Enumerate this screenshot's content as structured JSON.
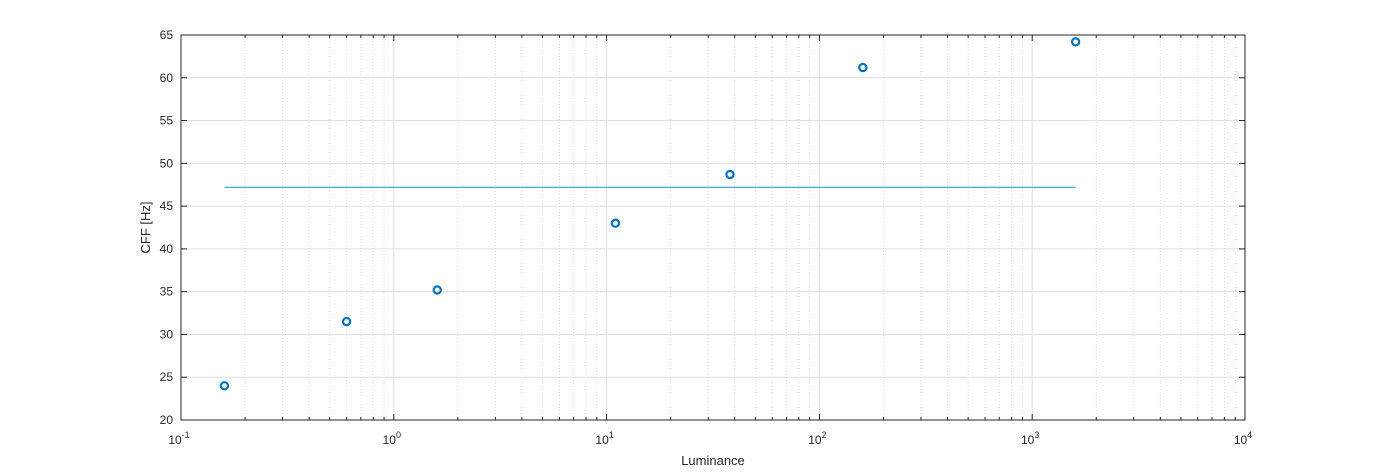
{
  "chart_data": {
    "type": "scatter",
    "xlabel": "Luminance",
    "ylabel": "CFF [Hz]",
    "xscale": "log",
    "xlim": [
      0.1,
      10000
    ],
    "ylim": [
      20,
      65
    ],
    "grid": true,
    "x_tick_base": "10",
    "x_tick_exponents": [
      "-1",
      "0",
      "1",
      "2",
      "3",
      "4"
    ],
    "y_ticks": [
      20,
      25,
      30,
      35,
      40,
      45,
      50,
      55,
      60,
      65
    ],
    "series": [
      {
        "type": "scatter",
        "marker": "circle",
        "x": [
          0.16,
          0.6,
          1.6,
          11,
          38,
          160,
          1600
        ],
        "y": [
          24.0,
          31.5,
          35.2,
          43.0,
          48.7,
          61.2,
          64.2
        ]
      },
      {
        "type": "line",
        "x": [
          0.16,
          1600
        ],
        "y": [
          47.2,
          47.2
        ]
      }
    ],
    "colors": {
      "marker": "#0072BD",
      "line": "#2a9fd8",
      "grid": "#dfdfdf",
      "axis": "#262626"
    }
  }
}
